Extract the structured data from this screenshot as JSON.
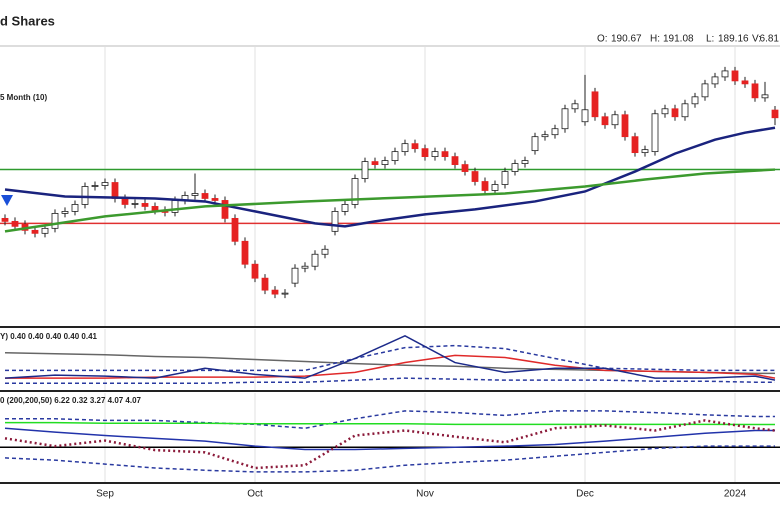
{
  "title": "d Shares",
  "quote": {
    "labels": [
      "O:",
      "H:",
      "L:",
      "V:"
    ],
    "values": [
      190.67,
      191.08,
      189.16,
      6.81
    ]
  },
  "chart_data": [
    {
      "type": "candlestick",
      "annotation": "5 Month (10)",
      "categories": [
        null,
        null,
        null,
        null,
        null,
        null,
        null,
        null,
        null,
        null,
        "Sep",
        null,
        null,
        null,
        null,
        null,
        null,
        null,
        null,
        null,
        null,
        null,
        null,
        null,
        null,
        "Oct",
        null,
        null,
        null,
        null,
        null,
        null,
        null,
        null,
        null,
        null,
        null,
        null,
        null,
        null,
        null,
        null,
        "Nov",
        null,
        null,
        null,
        null,
        null,
        null,
        null,
        null,
        null,
        null,
        null,
        null,
        null,
        null,
        null,
        "Dec",
        null,
        null,
        null,
        null,
        null,
        null,
        null,
        null,
        null,
        null,
        null,
        null,
        null,
        null,
        "2024",
        null,
        null,
        null,
        null
      ],
      "open": [
        179.8,
        179.5,
        179.2,
        178.6,
        178.3,
        178.8,
        180.3,
        180.5,
        181.2,
        183.0,
        183.1,
        183.4,
        181.8,
        181.2,
        181.3,
        181.0,
        180.6,
        180.4,
        181.6,
        182.1,
        182.3,
        181.8,
        181.6,
        179.8,
        177.5,
        175.2,
        173.8,
        172.6,
        172.2,
        173.3,
        174.8,
        175.0,
        176.2,
        178.5,
        180.5,
        181.2,
        183.8,
        185.5,
        185.2,
        185.6,
        186.5,
        187.3,
        186.8,
        186.0,
        186.5,
        186.0,
        185.2,
        184.5,
        183.5,
        182.6,
        183.2,
        184.5,
        185.3,
        186.6,
        188.0,
        188.2,
        188.8,
        190.8,
        189.5,
        192.5,
        190.0,
        189.2,
        190.2,
        188.0,
        186.4,
        186.5,
        190.3,
        190.8,
        190.0,
        191.3,
        192.0,
        193.3,
        194.0,
        194.6,
        193.6,
        193.3,
        191.9,
        190.67
      ],
      "high": [
        180.2,
        179.9,
        179.6,
        179.0,
        179.2,
        180.7,
        180.9,
        181.6,
        183.4,
        183.5,
        183.8,
        183.8,
        182.2,
        181.7,
        181.7,
        181.4,
        181.0,
        182.0,
        182.5,
        184.3,
        182.7,
        182.2,
        182.0,
        180.2,
        177.9,
        175.6,
        174.2,
        173.0,
        172.7,
        175.2,
        175.4,
        176.6,
        177.1,
        180.9,
        181.6,
        184.2,
        185.9,
        185.9,
        186.0,
        186.9,
        187.7,
        187.7,
        187.2,
        186.9,
        186.9,
        186.4,
        185.6,
        184.9,
        183.9,
        183.6,
        184.9,
        185.7,
        186.0,
        188.4,
        188.6,
        189.2,
        191.2,
        191.7,
        194.2,
        192.9,
        190.4,
        190.6,
        190.6,
        188.4,
        187.1,
        190.7,
        191.2,
        191.2,
        191.7,
        192.4,
        193.7,
        194.4,
        195.0,
        195.0,
        194.0,
        193.7,
        193.5,
        191.08
      ],
      "low": [
        179.1,
        178.6,
        178.2,
        177.9,
        177.9,
        178.4,
        179.9,
        180.1,
        180.8,
        182.6,
        182.7,
        181.4,
        180.8,
        180.8,
        180.6,
        180.2,
        180.0,
        180.0,
        181.2,
        181.7,
        181.4,
        181.2,
        179.4,
        177.1,
        174.8,
        173.4,
        172.2,
        171.8,
        171.8,
        172.9,
        174.4,
        174.6,
        175.8,
        178.1,
        180.1,
        180.8,
        183.4,
        184.8,
        184.8,
        185.2,
        186.1,
        186.4,
        185.6,
        185.6,
        185.6,
        184.8,
        184.1,
        183.1,
        182.2,
        182.2,
        182.8,
        184.1,
        184.9,
        186.2,
        187.6,
        187.8,
        188.4,
        190.4,
        189.1,
        189.6,
        188.8,
        188.8,
        187.6,
        186.0,
        186.0,
        186.1,
        189.9,
        189.6,
        189.6,
        190.9,
        191.6,
        192.9,
        193.6,
        193.2,
        192.9,
        191.5,
        191.5,
        189.16
      ],
      "close": [
        179.5,
        179.0,
        178.6,
        178.3,
        178.8,
        180.3,
        180.5,
        181.2,
        183.0,
        183.1,
        183.4,
        181.8,
        181.2,
        181.3,
        181.0,
        180.6,
        180.4,
        181.6,
        182.1,
        182.3,
        181.8,
        181.6,
        179.8,
        177.5,
        175.2,
        173.8,
        172.6,
        172.2,
        172.3,
        174.8,
        175.0,
        176.2,
        176.7,
        180.5,
        181.2,
        183.8,
        185.5,
        185.2,
        185.6,
        186.5,
        187.3,
        186.8,
        186.0,
        186.5,
        186.0,
        185.2,
        184.5,
        183.5,
        182.6,
        183.2,
        184.5,
        185.3,
        185.6,
        188.0,
        188.2,
        188.8,
        190.8,
        191.3,
        190.7,
        190.0,
        189.2,
        190.2,
        188.0,
        186.4,
        186.7,
        190.3,
        190.8,
        190.0,
        191.3,
        192.0,
        193.3,
        194.0,
        194.6,
        193.6,
        193.3,
        191.9,
        192.2,
        189.9
      ],
      "up_color": "#ffffff",
      "down_color": "#e52222",
      "ylim": [
        169,
        197
      ],
      "grid": true,
      "hlines": [
        {
          "value": 184.7,
          "color": "#2e9a2e"
        },
        {
          "value": 179.3,
          "color": "#e03030"
        }
      ],
      "series": [
        {
          "color": "#1a237e",
          "x": [
            0,
            6,
            15,
            20,
            25,
            31,
            34,
            37,
            42,
            47,
            53,
            58,
            63,
            67,
            71,
            74,
            77
          ],
          "values": [
            182.7,
            182.0,
            181.8,
            181.5,
            180.5,
            179.3,
            179.0,
            179.5,
            180.2,
            180.7,
            181.5,
            182.5,
            184.5,
            186.3,
            187.7,
            188.4,
            188.9
          ]
        },
        {
          "color": "#3c9a2e",
          "x": [
            0,
            10,
            20,
            30,
            40,
            50,
            58,
            64,
            70,
            77
          ],
          "values": [
            178.5,
            180.0,
            181.0,
            181.5,
            181.9,
            182.3,
            183.0,
            183.7,
            184.3,
            184.7
          ]
        }
      ]
    },
    {
      "type": "line",
      "title": "Y) 0.40 0.40 0.40 0.40 0.41",
      "x": [
        0,
        5,
        10,
        15,
        20,
        25,
        30,
        35,
        40,
        45,
        50,
        55,
        60,
        65,
        70,
        75,
        77
      ],
      "ylim": [
        0,
        1.8
      ],
      "grid": true,
      "series": [
        {
          "color": "#666666",
          "values": [
            1.1,
            1.07,
            1.04,
            0.99,
            0.96,
            0.9,
            0.84,
            0.78,
            0.73,
            0.7,
            0.64,
            0.61,
            0.58,
            0.55,
            0.52,
            0.49,
            0.49
          ]
        },
        {
          "color": "#2a3aa0",
          "dash": "dashed",
          "values": [
            0.58,
            0.58,
            0.58,
            0.58,
            0.58,
            0.58,
            0.58,
            0.93,
            1.25,
            1.31,
            1.22,
            0.93,
            0.64,
            0.61,
            0.58,
            0.58,
            0.58
          ]
        },
        {
          "color": "#2a3aa0",
          "dash": "dashed",
          "values": [
            0.2,
            0.2,
            0.2,
            0.2,
            0.2,
            0.23,
            0.23,
            0.29,
            0.35,
            0.32,
            0.29,
            0.29,
            0.29,
            0.26,
            0.26,
            0.23,
            0.23
          ]
        },
        {
          "color": "#e02a2a",
          "values": [
            0.35,
            0.35,
            0.35,
            0.38,
            0.38,
            0.38,
            0.41,
            0.52,
            0.81,
            1.02,
            0.96,
            0.73,
            0.58,
            0.55,
            0.52,
            0.46,
            0.35
          ]
        },
        {
          "color": "#1c2a8a",
          "values": [
            0.35,
            0.44,
            0.41,
            0.35,
            0.64,
            0.46,
            0.35,
            0.93,
            1.6,
            0.81,
            0.52,
            0.64,
            0.64,
            0.35,
            0.35,
            0.41,
            0.29
          ]
        }
      ]
    },
    {
      "type": "line",
      "title": "0 (200,200,50) 6.22 0.32 3.27 4.07 4.07",
      "x": [
        0,
        5,
        10,
        15,
        20,
        25,
        30,
        35,
        40,
        45,
        50,
        55,
        60,
        65,
        70,
        75,
        77
      ],
      "ylim": [
        -6.2,
        9.7
      ],
      "grid": true,
      "hlines": [
        {
          "value": 0,
          "color": "#000000"
        }
      ],
      "series": [
        {
          "color": "#2a3aa0",
          "dash": "dashed",
          "values": [
            5.1,
            5.1,
            4.8,
            4.8,
            4.4,
            4.1,
            3.4,
            5.1,
            6.5,
            6.2,
            5.7,
            6.5,
            6.5,
            6.2,
            5.8,
            5.5,
            5.5
          ]
        },
        {
          "color": "#2a3aa0",
          "dash": "dashed",
          "values": [
            -1.9,
            -2.3,
            -3.0,
            -3.7,
            -4.1,
            -4.4,
            -4.4,
            -4.1,
            -3.2,
            -2.7,
            -2.3,
            -1.6,
            -0.9,
            -0.2,
            0.2,
            0.2,
            0.2
          ]
        },
        {
          "color": "#22dd22",
          "values": [
            4.4,
            4.4,
            4.3,
            4.3,
            4.3,
            4.2,
            4.2,
            4.2,
            4.2,
            4.1,
            4.1,
            4.1,
            4.1,
            4.1,
            4.1,
            4.07,
            4.07
          ]
        },
        {
          "color": "#2233aa",
          "values": [
            3.4,
            2.7,
            2.1,
            1.6,
            1.1,
            0.2,
            -0.4,
            -0.4,
            -0.2,
            0,
            0.2,
            0.5,
            1.1,
            1.8,
            2.5,
            3.0,
            3.0
          ]
        },
        {
          "color": "#8b1a3a",
          "dash": "dotted",
          "values": [
            1.6,
            0.2,
            1.2,
            -0.5,
            -0.9,
            -3.7,
            -3.2,
            2.1,
            3.0,
            1.9,
            0.9,
            3.4,
            3.9,
            3.0,
            4.8,
            3.4,
            3.0
          ]
        }
      ]
    }
  ]
}
